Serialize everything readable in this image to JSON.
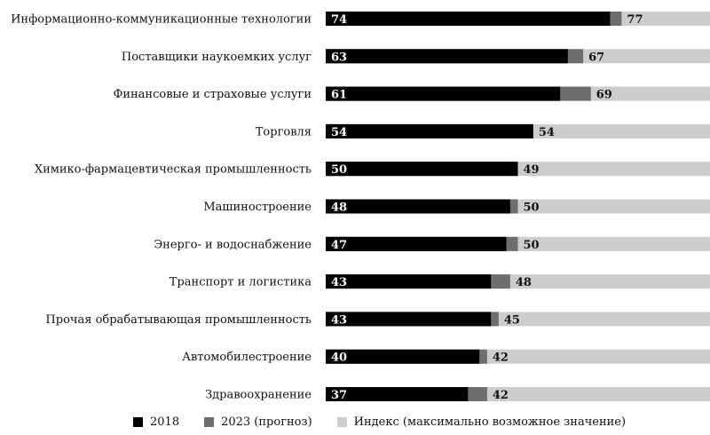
{
  "chart_data": {
    "type": "bar",
    "orientation": "horizontal",
    "stacked": "overlay",
    "max_value": 100,
    "categories": [
      "Информационно-коммуникационные технологии",
      "Поставщики наукоемких услуг",
      "Финансовые и страховые услуги",
      "Торговля",
      "Химико-фармацевтическая промышленность",
      "Машиностроение",
      "Энерго- и водоснабжение",
      "Транспорт и логистика",
      "Прочая обрабатывающая промышленность",
      "Автомобилестроение",
      "Здравоохранение"
    ],
    "series": [
      {
        "name": "2018",
        "values": [
          74,
          63,
          61,
          54,
          50,
          48,
          47,
          43,
          43,
          40,
          37
        ]
      },
      {
        "name": "2023 (прогноз)",
        "values": [
          77,
          67,
          69,
          54,
          49,
          50,
          50,
          48,
          45,
          42,
          42
        ]
      },
      {
        "name": "Индекс (максимально возможное значение)",
        "values": [
          100,
          100,
          100,
          100,
          100,
          100,
          100,
          100,
          100,
          100,
          100
        ]
      }
    ],
    "legend_position": "bottom",
    "colors": {
      "s2018": "#000000",
      "s2023": "#6e6e6e",
      "max": "#cdcdcd"
    }
  },
  "legend": {
    "item_2018": "2018",
    "item_2023": "2023 (прогноз)",
    "item_max": "Индекс (максимально возможное значение)"
  }
}
